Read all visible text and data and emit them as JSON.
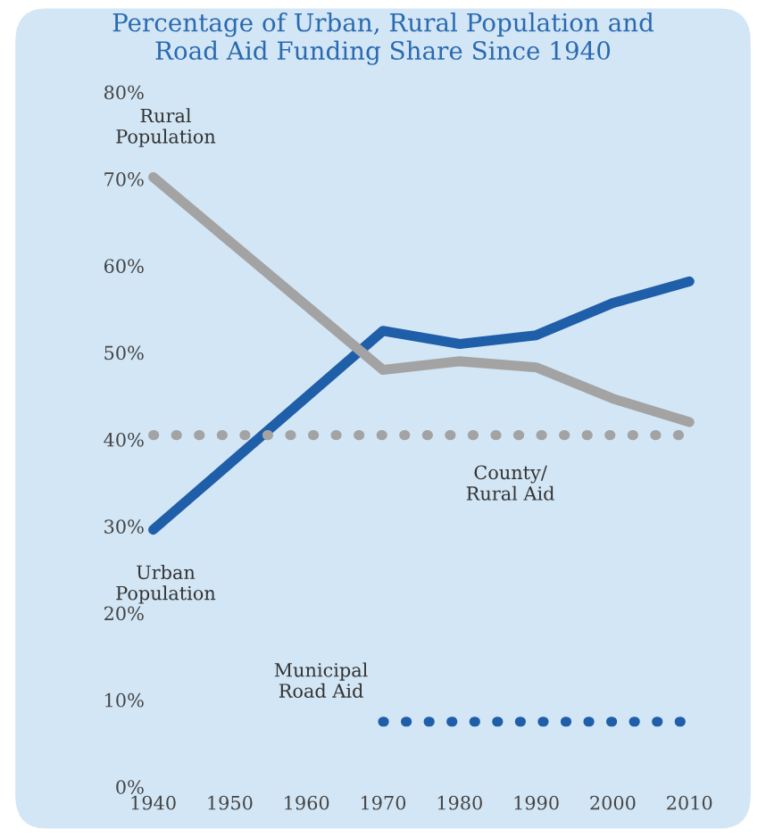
{
  "chart_data": {
    "type": "line",
    "title": "Percentage of Urban, Rural Population and\nRoad Aid Funding Share Since 1940",
    "x": [
      1940,
      1970,
      1980,
      1990,
      2000,
      2010
    ],
    "series": [
      {
        "color": "#1f5ea8",
        "values": [
          29.6,
          52.5,
          51,
          52,
          55.7,
          58.2
        ]
      },
      {
        "color": "#a3a3a3",
        "values": [
          70.2,
          48,
          49,
          48.3,
          44.7,
          42
        ]
      },
      {
        "color": "#a3a3a3",
        "line_style": "dotted",
        "x": [
          1940,
          2010
        ],
        "values": [
          40.5,
          40.5
        ]
      },
      {
        "color": "#1f5ea8",
        "line_style": "dotted",
        "x": [
          1970,
          2010
        ],
        "values": [
          7.5,
          7.5
        ]
      }
    ],
    "annotations": [
      {
        "text": "Rural\nPopulation",
        "x": 1940,
        "y": 70.2
      },
      {
        "text": "Urban\nPopulation",
        "x": 1940,
        "y": 29.6
      },
      {
        "text": "County/\nRural Aid",
        "x": 1985,
        "y": 40.5
      },
      {
        "text": "Municipal\nRoad Aid",
        "x": 1970,
        "y": 7.5
      }
    ],
    "xlim": [
      1940,
      2010
    ],
    "xticks": [
      1940,
      1950,
      1960,
      1970,
      1980,
      1990,
      2000,
      2010
    ],
    "ylim": [
      0,
      80
    ],
    "yticks": [
      {
        "value": 0,
        "label": "0%"
      },
      {
        "value": 10,
        "label": "10%"
      },
      {
        "value": 20,
        "label": "20%"
      },
      {
        "value": 30,
        "label": "30%"
      },
      {
        "value": 40,
        "label": "40%"
      },
      {
        "value": 50,
        "label": "50%"
      },
      {
        "value": 60,
        "label": "60%"
      },
      {
        "value": 70,
        "label": "70%"
      },
      {
        "value": 80,
        "label": "80%"
      }
    ],
    "grid": false,
    "legend": false
  }
}
